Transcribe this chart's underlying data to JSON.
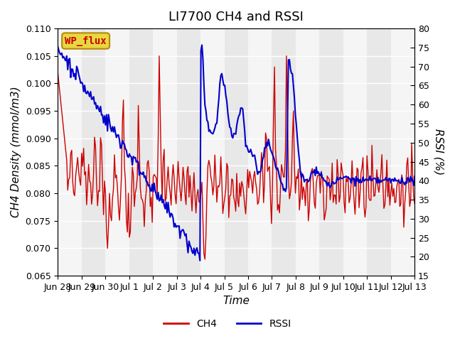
{
  "title": "LI7700 CH4 and RSSI",
  "xlabel": "Time",
  "ylabel_left": "CH4 Density (mmol/m3)",
  "ylabel_right": "RSSI (%)",
  "ylim_left": [
    0.065,
    0.11
  ],
  "ylim_right": [
    15,
    80
  ],
  "yticks_left": [
    0.065,
    0.07,
    0.075,
    0.08,
    0.085,
    0.09,
    0.095,
    0.1,
    0.105,
    0.11
  ],
  "yticks_right": [
    15,
    20,
    25,
    30,
    35,
    40,
    45,
    50,
    55,
    60,
    65,
    70,
    75,
    80
  ],
  "xtick_labels": [
    "Jun 28",
    "Jun 29",
    "Jun 30",
    "Jul 1",
    "Jul 2",
    "Jul 3",
    "Jul 4",
    "Jul 5",
    "Jul 6",
    "Jul 7",
    "Jul 8",
    "Jul 9",
    "Jul 10",
    "Jul 11",
    "Jul 12",
    "Jul 13"
  ],
  "color_ch4": "#cc0000",
  "color_rssi": "#0000cc",
  "color_bg": "#e8e8e8",
  "color_strip_light": "#f0f0f0",
  "color_strip_dark": "#e0e0e0",
  "legend_ch4": "CH4",
  "legend_rssi": "RSSI",
  "site_label": "WP_flux",
  "title_fontsize": 13,
  "label_fontsize": 11,
  "tick_fontsize": 9
}
